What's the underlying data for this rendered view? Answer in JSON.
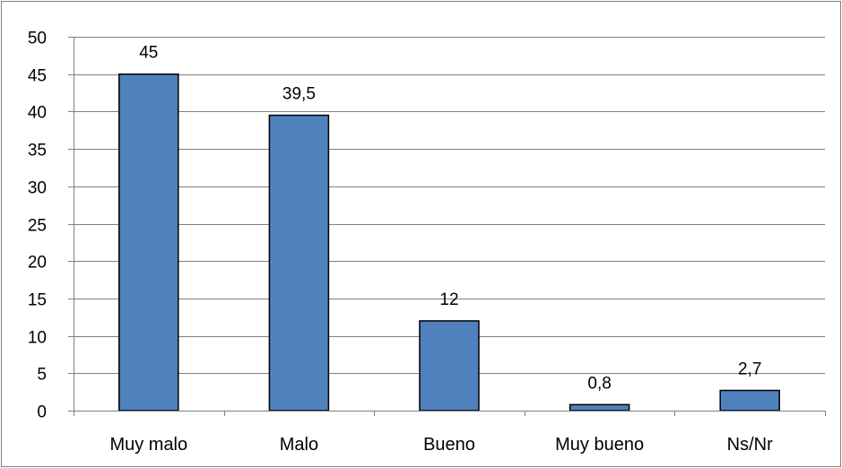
{
  "chart_data": {
    "type": "bar",
    "title": "",
    "xlabel": "",
    "ylabel": "",
    "categories": [
      "Muy malo",
      "Malo",
      "Bueno",
      "Muy bueno",
      "Ns/Nr"
    ],
    "values": [
      45,
      39.5,
      12,
      0.8,
      2.7
    ],
    "data_labels": [
      "45",
      "39,5",
      "12",
      "0,8",
      "2,7"
    ],
    "ylim": [
      0,
      50
    ],
    "yticks": [
      0,
      5,
      10,
      15,
      20,
      25,
      30,
      35,
      40,
      45,
      50
    ],
    "ytick_labels": [
      "0",
      "5",
      "10",
      "15",
      "20",
      "25",
      "30",
      "35",
      "40",
      "45",
      "50"
    ],
    "grid": true,
    "legend": "none",
    "colors": {
      "bar_fill": "#4f81bd",
      "bar_stroke": "#000000",
      "grid": "#808080",
      "axis": "#808080",
      "frame": "#808080"
    }
  }
}
